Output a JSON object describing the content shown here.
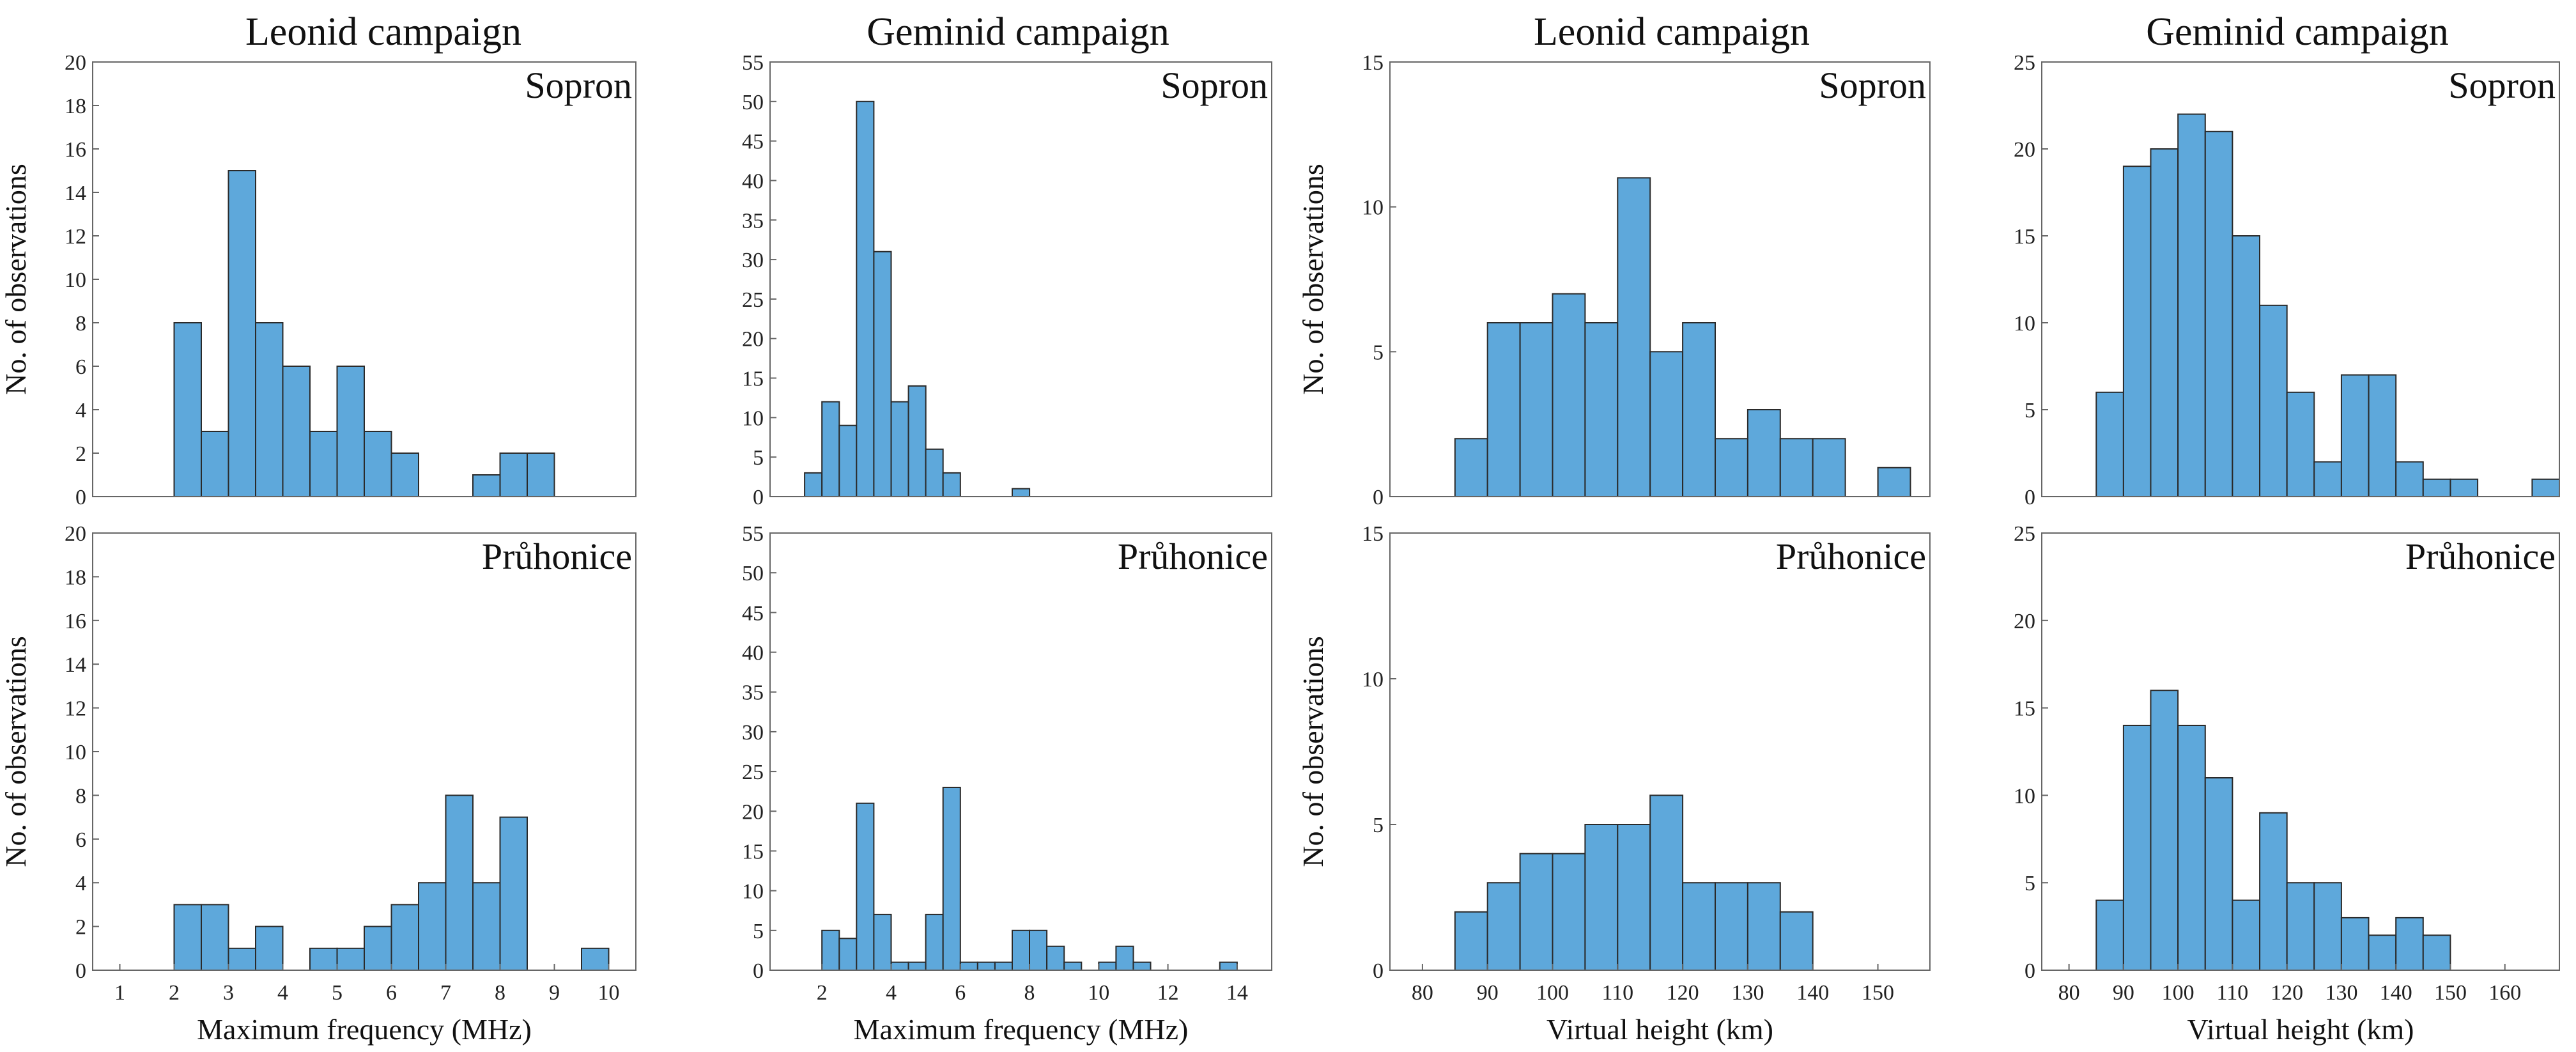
{
  "column_titles": [
    "Leonid campaign",
    "Geminid campaign",
    "Leonid campaign",
    "Geminid campaign"
  ],
  "colors": {
    "bar_fill": "#5ea8db",
    "bar_edge": "#2a2a2a",
    "axis": "#666666"
  },
  "chart_data": [
    {
      "type": "bar",
      "panel": "top-1",
      "station": "Sopron",
      "campaign": "Leonid campaign",
      "xlabel": "",
      "ylabel": "No. of observations",
      "xlim": [
        0.5,
        10.5
      ],
      "ylim": [
        0,
        20
      ],
      "yticks": [
        0,
        2,
        4,
        6,
        8,
        10,
        12,
        14,
        16,
        18,
        20
      ],
      "xticks": [],
      "bin_width": 0.5,
      "bins": [
        [
          2,
          8
        ],
        [
          2.5,
          3
        ],
        [
          3,
          15
        ],
        [
          3.5,
          8
        ],
        [
          4,
          6
        ],
        [
          4.5,
          3
        ],
        [
          5,
          6
        ],
        [
          5.5,
          3
        ],
        [
          6,
          2
        ],
        [
          6.5,
          0
        ],
        [
          7,
          0
        ],
        [
          7.5,
          1
        ],
        [
          8,
          2
        ],
        [
          8.5,
          2
        ]
      ]
    },
    {
      "type": "bar",
      "panel": "top-2",
      "station": "Sopron",
      "campaign": "Geminid campaign",
      "xlabel": "",
      "ylabel": "",
      "xlim": [
        0.5,
        15
      ],
      "ylim": [
        0,
        55
      ],
      "yticks": [
        0,
        5,
        10,
        15,
        20,
        25,
        30,
        35,
        40,
        45,
        50,
        55
      ],
      "xticks": [],
      "bin_width": 0.5,
      "bins": [
        [
          1.5,
          3
        ],
        [
          2,
          12
        ],
        [
          2.5,
          9
        ],
        [
          3,
          50
        ],
        [
          3.5,
          31
        ],
        [
          4,
          12
        ],
        [
          4.5,
          14
        ],
        [
          5,
          6
        ],
        [
          5.5,
          3
        ],
        [
          6,
          0
        ],
        [
          6.5,
          0
        ],
        [
          7,
          0
        ],
        [
          7.5,
          1
        ]
      ]
    },
    {
      "type": "bar",
      "panel": "top-3",
      "station": "Sopron",
      "campaign": "Leonid campaign",
      "xlabel": "",
      "ylabel": "No. of observations",
      "xlim": [
        75,
        158
      ],
      "ylim": [
        0,
        15
      ],
      "yticks": [
        0,
        5,
        10,
        15
      ],
      "xticks": [],
      "bin_width": 5,
      "bins": [
        [
          85,
          2
        ],
        [
          90,
          6
        ],
        [
          95,
          6
        ],
        [
          100,
          7
        ],
        [
          105,
          6
        ],
        [
          110,
          11
        ],
        [
          115,
          5
        ],
        [
          120,
          6
        ],
        [
          125,
          2
        ],
        [
          130,
          3
        ],
        [
          135,
          2
        ],
        [
          140,
          2
        ],
        [
          145,
          0
        ],
        [
          150,
          1
        ]
      ]
    },
    {
      "type": "bar",
      "panel": "top-4",
      "station": "Sopron",
      "campaign": "Geminid campaign",
      "xlabel": "",
      "ylabel": "",
      "xlim": [
        75,
        170
      ],
      "ylim": [
        0,
        25
      ],
      "yticks": [
        0,
        5,
        10,
        15,
        20,
        25
      ],
      "xticks": [],
      "bin_width": 5,
      "bins": [
        [
          85,
          6
        ],
        [
          90,
          19
        ],
        [
          95,
          20
        ],
        [
          100,
          22
        ],
        [
          105,
          21
        ],
        [
          110,
          15
        ],
        [
          115,
          11
        ],
        [
          120,
          6
        ],
        [
          125,
          2
        ],
        [
          130,
          7
        ],
        [
          135,
          7
        ],
        [
          140,
          2
        ],
        [
          145,
          1
        ],
        [
          150,
          1
        ],
        [
          155,
          0
        ],
        [
          160,
          0
        ],
        [
          165,
          1
        ]
      ]
    },
    {
      "type": "bar",
      "panel": "bottom-1",
      "station": "Průhonice",
      "campaign": "Leonid campaign",
      "xlabel": "Maximum frequency (MHz)",
      "ylabel": "No. of observations",
      "xlim": [
        0.5,
        10.5
      ],
      "ylim": [
        0,
        20
      ],
      "yticks": [
        0,
        2,
        4,
        6,
        8,
        10,
        12,
        14,
        16,
        18,
        20
      ],
      "xticks": [
        1,
        2,
        3,
        4,
        5,
        6,
        7,
        8,
        9,
        10
      ],
      "bin_width": 0.5,
      "bins": [
        [
          2,
          3
        ],
        [
          2.5,
          3
        ],
        [
          3,
          1
        ],
        [
          3.5,
          2
        ],
        [
          4,
          0
        ],
        [
          4.5,
          1
        ],
        [
          5,
          1
        ],
        [
          5.5,
          2
        ],
        [
          6,
          3
        ],
        [
          6.5,
          4
        ],
        [
          7,
          8
        ],
        [
          7.5,
          4
        ],
        [
          8,
          7
        ],
        [
          8.5,
          0
        ],
        [
          9,
          0
        ],
        [
          9.5,
          1
        ]
      ]
    },
    {
      "type": "bar",
      "panel": "bottom-2",
      "station": "Průhonice",
      "campaign": "Geminid campaign",
      "xlabel": "Maximum frequency (MHz)",
      "ylabel": "",
      "xlim": [
        0.5,
        15
      ],
      "ylim": [
        0,
        55
      ],
      "yticks": [
        0,
        5,
        10,
        15,
        20,
        25,
        30,
        35,
        40,
        45,
        50,
        55
      ],
      "xticks": [
        2,
        4,
        6,
        8,
        10,
        12,
        14
      ],
      "bin_width": 0.5,
      "bins": [
        [
          2,
          5
        ],
        [
          2.5,
          4
        ],
        [
          3,
          21
        ],
        [
          3.5,
          7
        ],
        [
          4,
          1
        ],
        [
          4.5,
          1
        ],
        [
          5,
          7
        ],
        [
          5.5,
          23
        ],
        [
          6,
          1
        ],
        [
          6.5,
          1
        ],
        [
          7,
          1
        ],
        [
          7.5,
          5
        ],
        [
          8,
          5
        ],
        [
          8.5,
          3
        ],
        [
          9,
          1
        ],
        [
          9.5,
          0
        ],
        [
          10,
          1
        ],
        [
          10.5,
          3
        ],
        [
          11,
          1
        ],
        [
          11.5,
          0
        ],
        [
          12,
          0
        ],
        [
          12.5,
          0
        ],
        [
          13,
          0
        ],
        [
          13.5,
          1
        ]
      ]
    },
    {
      "type": "bar",
      "panel": "bottom-3",
      "station": "Průhonice",
      "campaign": "Leonid campaign",
      "xlabel": "Virtual height (km)",
      "ylabel": "No. of observations",
      "xlim": [
        75,
        158
      ],
      "ylim": [
        0,
        15
      ],
      "yticks": [
        0,
        5,
        10,
        15
      ],
      "xticks": [
        80,
        90,
        100,
        110,
        120,
        130,
        140,
        150
      ],
      "bin_width": 5,
      "bins": [
        [
          85,
          2
        ],
        [
          90,
          3
        ],
        [
          95,
          4
        ],
        [
          100,
          4
        ],
        [
          105,
          5
        ],
        [
          110,
          5
        ],
        [
          115,
          6
        ],
        [
          120,
          3
        ],
        [
          125,
          3
        ],
        [
          130,
          3
        ],
        [
          135,
          2
        ]
      ]
    },
    {
      "type": "bar",
      "panel": "bottom-4",
      "station": "Průhonice",
      "campaign": "Geminid campaign",
      "xlabel": "Virtual height (km)",
      "ylabel": "",
      "xlim": [
        75,
        170
      ],
      "ylim": [
        0,
        25
      ],
      "yticks": [
        0,
        5,
        10,
        15,
        20,
        25
      ],
      "xticks": [
        80,
        90,
        100,
        110,
        120,
        130,
        140,
        150,
        160
      ],
      "bin_width": 5,
      "bins": [
        [
          85,
          4
        ],
        [
          90,
          14
        ],
        [
          95,
          16
        ],
        [
          100,
          14
        ],
        [
          105,
          11
        ],
        [
          110,
          4
        ],
        [
          115,
          9
        ],
        [
          120,
          5
        ],
        [
          125,
          5
        ],
        [
          130,
          3
        ],
        [
          135,
          2
        ],
        [
          140,
          3
        ],
        [
          145,
          2
        ]
      ]
    }
  ]
}
